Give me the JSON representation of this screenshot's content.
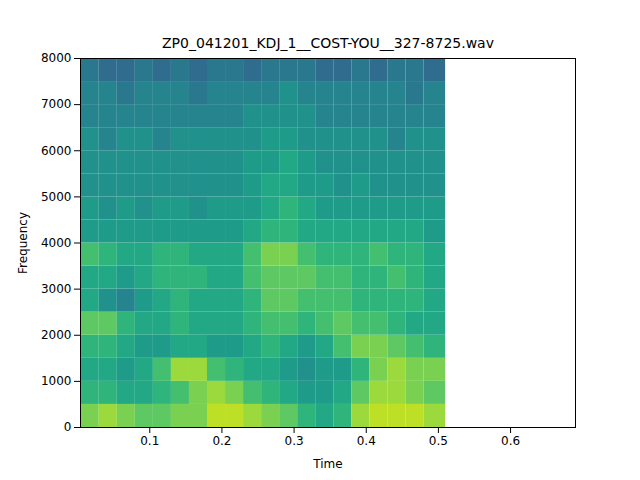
{
  "chart_data": {
    "type": "heatmap",
    "title": "ZP0_041201_KDJ_1__COST-YOU__327-8725.wav",
    "xlabel": "Time",
    "ylabel": "Frequency",
    "xlim": [
      0.004,
      0.69
    ],
    "ylim": [
      0,
      8000
    ],
    "xticks": [
      0.1,
      0.2,
      0.3,
      0.4,
      0.5,
      0.6
    ],
    "yticks": [
      0,
      1000,
      2000,
      3000,
      4000,
      5000,
      6000,
      7000,
      8000
    ],
    "color": "viridis",
    "zlim": [
      0,
      10
    ],
    "x_edges": [
      0.004,
      0.03,
      0.055,
      0.08,
      0.105,
      0.13,
      0.155,
      0.18,
      0.205,
      0.23,
      0.255,
      0.28,
      0.305,
      0.33,
      0.355,
      0.38,
      0.405,
      0.43,
      0.455,
      0.48,
      0.51
    ],
    "y_edges": [
      0,
      500,
      1000,
      1500,
      2000,
      2500,
      3000,
      3500,
      4000,
      4500,
      5000,
      5500,
      6000,
      6500,
      7000,
      7500,
      8000
    ],
    "values": [
      [
        8,
        8.5,
        8,
        7.5,
        7.5,
        8,
        8,
        9,
        9,
        8.5,
        8,
        7.5,
        6.5,
        6,
        6.5,
        8.5,
        9,
        9,
        9,
        8.5
      ],
      [
        6.5,
        6.5,
        6,
        6,
        6.5,
        7,
        8,
        8.5,
        8,
        7,
        6.5,
        6,
        5.5,
        5.5,
        6,
        7.5,
        8.5,
        8.5,
        8,
        7.5
      ],
      [
        6,
        6,
        5.5,
        6,
        7,
        8.5,
        8.5,
        7,
        6.5,
        6,
        6,
        5.5,
        5,
        5.5,
        5.5,
        6.5,
        8,
        8.5,
        8,
        8
      ],
      [
        6.5,
        6.5,
        6,
        5.5,
        5.5,
        6,
        6,
        5.5,
        5.5,
        6,
        6.5,
        6,
        5.5,
        6,
        7,
        8,
        8,
        7.5,
        7,
        6.5
      ],
      [
        7.5,
        7.5,
        6.5,
        6,
        6,
        6.5,
        6,
        6,
        6,
        6.5,
        7,
        7,
        6.5,
        7,
        7.5,
        7,
        7,
        6.5,
        6,
        6
      ],
      [
        6,
        5,
        4.5,
        5.5,
        6,
        6.5,
        6,
        6,
        6,
        6.5,
        7.5,
        7.5,
        7,
        7,
        7,
        6.5,
        6.5,
        6.5,
        6.5,
        6
      ],
      [
        6,
        6,
        5.5,
        6,
        6.5,
        6.5,
        6.5,
        6,
        6,
        7,
        7.5,
        7.5,
        7.5,
        7,
        7,
        6.5,
        6.5,
        7,
        6.5,
        6
      ],
      [
        7,
        6.5,
        6,
        6,
        6.5,
        6.5,
        6,
        6,
        6,
        7,
        8,
        8,
        7,
        6.5,
        6.5,
        6.5,
        7,
        6.5,
        6.5,
        6
      ],
      [
        5.5,
        5.5,
        5.5,
        5.5,
        5.5,
        5.5,
        5.5,
        5.5,
        5.5,
        6,
        6.5,
        6.5,
        6,
        6,
        6,
        6,
        6,
        6,
        6,
        5.5
      ],
      [
        5.5,
        5,
        5.5,
        5,
        5.5,
        5.5,
        5,
        5.5,
        5.5,
        5.5,
        6,
        6.5,
        6,
        5.5,
        5.5,
        5.5,
        5.5,
        5.5,
        5.5,
        5.5
      ],
      [
        5,
        5,
        5,
        5,
        5,
        5,
        5,
        5,
        5,
        5.5,
        6,
        6,
        5.5,
        5.5,
        5,
        5.5,
        5,
        5,
        5,
        5
      ],
      [
        5,
        5,
        5,
        5,
        5,
        5,
        5,
        5,
        5,
        5.5,
        5.5,
        6,
        5.5,
        5,
        5,
        5,
        5,
        5,
        5,
        5
      ],
      [
        5,
        4.5,
        5,
        5,
        4.5,
        5,
        5,
        5,
        5,
        5,
        5.5,
        5.5,
        5,
        5,
        5,
        5,
        5,
        4.5,
        5,
        5
      ],
      [
        4.5,
        4.5,
        4.5,
        4.5,
        4.5,
        4.5,
        4.5,
        4.5,
        4.5,
        5,
        5,
        5,
        5,
        4.5,
        4.5,
        4.5,
        4.5,
        4.5,
        4.5,
        4.5
      ],
      [
        4.5,
        4.5,
        4,
        4.5,
        4.5,
        4.5,
        4,
        4.5,
        4.5,
        4.5,
        4.5,
        5,
        4.5,
        4.5,
        4.5,
        4.5,
        4.5,
        4.5,
        4,
        4.5
      ],
      [
        4,
        3.5,
        3.5,
        4,
        3.5,
        4,
        3.5,
        4,
        4,
        3.5,
        4,
        4,
        4,
        3.5,
        3.5,
        4,
        3.5,
        4,
        4,
        3.5
      ]
    ]
  }
}
